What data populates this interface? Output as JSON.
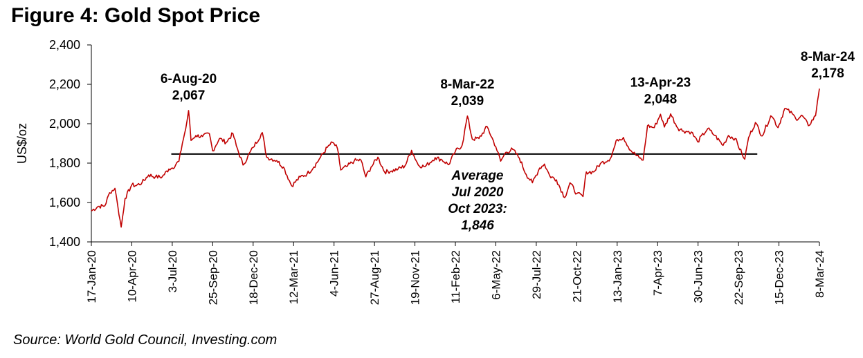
{
  "chart_data": {
    "type": "line",
    "title": "Figure 4: Gold Spot Price",
    "ylabel": "US$/oz",
    "xlabel": "",
    "ylim": [
      1400,
      2400
    ],
    "y_ticks": [
      "1,400",
      "1,600",
      "1,800",
      "2,000",
      "2,200",
      "2,400"
    ],
    "y_tick_values": [
      1400,
      1600,
      1800,
      2000,
      2200,
      2400
    ],
    "x_range": [
      "2020-01-17",
      "2024-03-08"
    ],
    "x_ticks": [
      {
        "label": "17-Jan-20",
        "date": "2020-01-17"
      },
      {
        "label": "10-Apr-20",
        "date": "2020-04-10"
      },
      {
        "label": "3-Jul-20",
        "date": "2020-07-03"
      },
      {
        "label": "25-Sep-20",
        "date": "2020-09-25"
      },
      {
        "label": "18-Dec-20",
        "date": "2020-12-18"
      },
      {
        "label": "12-Mar-21",
        "date": "2021-03-12"
      },
      {
        "label": "4-Jun-21",
        "date": "2021-06-04"
      },
      {
        "label": "27-Aug-21",
        "date": "2021-08-27"
      },
      {
        "label": "19-Nov-21",
        "date": "2021-11-19"
      },
      {
        "label": "11-Feb-22",
        "date": "2022-02-11"
      },
      {
        "label": "6-May-22",
        "date": "2022-05-06"
      },
      {
        "label": "29-Jul-22",
        "date": "2022-07-29"
      },
      {
        "label": "21-Oct-22",
        "date": "2022-10-21"
      },
      {
        "label": "13-Jan-23",
        "date": "2023-01-13"
      },
      {
        "label": "7-Apr-23",
        "date": "2023-04-07"
      },
      {
        "label": "30-Jun-23",
        "date": "2023-06-30"
      },
      {
        "label": "22-Sep-23",
        "date": "2023-09-22"
      },
      {
        "label": "15-Dec-23",
        "date": "2023-12-15"
      },
      {
        "label": "8-Mar-24",
        "date": "2024-03-08"
      }
    ],
    "series": [
      {
        "name": "Gold spot price",
        "color": "#c00000",
        "points": [
          [
            "2020-01-17",
            1557
          ],
          [
            "2020-01-31",
            1580
          ],
          [
            "2020-02-14",
            1583
          ],
          [
            "2020-02-24",
            1650
          ],
          [
            "2020-03-06",
            1672
          ],
          [
            "2020-03-12",
            1580
          ],
          [
            "2020-03-19",
            1475
          ],
          [
            "2020-03-27",
            1620
          ],
          [
            "2020-04-10",
            1690
          ],
          [
            "2020-04-17",
            1685
          ],
          [
            "2020-05-01",
            1700
          ],
          [
            "2020-05-15",
            1740
          ],
          [
            "2020-05-29",
            1730
          ],
          [
            "2020-06-12",
            1730
          ],
          [
            "2020-06-26",
            1770
          ],
          [
            "2020-07-03",
            1775
          ],
          [
            "2020-07-17",
            1810
          ],
          [
            "2020-07-24",
            1900
          ],
          [
            "2020-07-31",
            1975
          ],
          [
            "2020-08-06",
            2067
          ],
          [
            "2020-08-11",
            1915
          ],
          [
            "2020-08-21",
            1940
          ],
          [
            "2020-09-04",
            1935
          ],
          [
            "2020-09-18",
            1950
          ],
          [
            "2020-09-25",
            1862
          ],
          [
            "2020-10-09",
            1925
          ],
          [
            "2020-10-23",
            1905
          ],
          [
            "2020-11-06",
            1950
          ],
          [
            "2020-11-13",
            1889
          ],
          [
            "2020-11-27",
            1790
          ],
          [
            "2020-12-18",
            1880
          ],
          [
            "2021-01-06",
            1955
          ],
          [
            "2021-01-15",
            1830
          ],
          [
            "2021-02-05",
            1813
          ],
          [
            "2021-02-19",
            1780
          ],
          [
            "2021-03-08",
            1685
          ],
          [
            "2021-03-26",
            1730
          ],
          [
            "2021-04-09",
            1745
          ],
          [
            "2021-04-23",
            1780
          ],
          [
            "2021-05-07",
            1830
          ],
          [
            "2021-05-21",
            1880
          ],
          [
            "2021-06-01",
            1905
          ],
          [
            "2021-06-11",
            1875
          ],
          [
            "2021-06-18",
            1765
          ],
          [
            "2021-07-02",
            1785
          ],
          [
            "2021-07-16",
            1812
          ],
          [
            "2021-07-30",
            1815
          ],
          [
            "2021-08-09",
            1730
          ],
          [
            "2021-08-20",
            1780
          ],
          [
            "2021-09-03",
            1830
          ],
          [
            "2021-09-17",
            1755
          ],
          [
            "2021-10-01",
            1760
          ],
          [
            "2021-10-15",
            1770
          ],
          [
            "2021-10-29",
            1785
          ],
          [
            "2021-11-12",
            1865
          ],
          [
            "2021-11-26",
            1790
          ],
          [
            "2021-12-10",
            1782
          ],
          [
            "2021-12-31",
            1828
          ],
          [
            "2022-01-14",
            1817
          ],
          [
            "2022-01-28",
            1792
          ],
          [
            "2022-02-11",
            1860
          ],
          [
            "2022-02-25",
            1890
          ],
          [
            "2022-03-08",
            2039
          ],
          [
            "2022-03-18",
            1922
          ],
          [
            "2022-04-01",
            1925
          ],
          [
            "2022-04-18",
            1985
          ],
          [
            "2022-05-06",
            1883
          ],
          [
            "2022-05-16",
            1810
          ],
          [
            "2022-05-27",
            1855
          ],
          [
            "2022-06-10",
            1870
          ],
          [
            "2022-06-24",
            1825
          ],
          [
            "2022-07-08",
            1742
          ],
          [
            "2022-07-21",
            1700
          ],
          [
            "2022-08-05",
            1775
          ],
          [
            "2022-08-15",
            1795
          ],
          [
            "2022-08-26",
            1735
          ],
          [
            "2022-09-09",
            1715
          ],
          [
            "2022-09-26",
            1625
          ],
          [
            "2022-10-07",
            1700
          ],
          [
            "2022-10-21",
            1645
          ],
          [
            "2022-11-03",
            1630
          ],
          [
            "2022-11-10",
            1755
          ],
          [
            "2022-11-25",
            1755
          ],
          [
            "2022-12-09",
            1797
          ],
          [
            "2022-12-30",
            1824
          ],
          [
            "2023-01-13",
            1920
          ],
          [
            "2023-01-26",
            1930
          ],
          [
            "2023-02-10",
            1865
          ],
          [
            "2023-02-28",
            1826
          ],
          [
            "2023-03-08",
            1815
          ],
          [
            "2023-03-17",
            1990
          ],
          [
            "2023-03-31",
            1980
          ],
          [
            "2023-04-13",
            2048
          ],
          [
            "2023-04-21",
            1983
          ],
          [
            "2023-05-04",
            2050
          ],
          [
            "2023-05-19",
            1978
          ],
          [
            "2023-05-31",
            1963
          ],
          [
            "2023-06-16",
            1958
          ],
          [
            "2023-06-29",
            1908
          ],
          [
            "2023-07-20",
            1975
          ],
          [
            "2023-08-04",
            1940
          ],
          [
            "2023-08-21",
            1890
          ],
          [
            "2023-09-01",
            1940
          ],
          [
            "2023-09-15",
            1925
          ],
          [
            "2023-09-29",
            1848
          ],
          [
            "2023-10-05",
            1820
          ],
          [
            "2023-10-13",
            1930
          ],
          [
            "2023-10-27",
            2006
          ],
          [
            "2023-11-10",
            1938
          ],
          [
            "2023-11-28",
            2040
          ],
          [
            "2023-12-04",
            2025
          ],
          [
            "2023-12-13",
            1980
          ],
          [
            "2023-12-27",
            2077
          ],
          [
            "2024-01-12",
            2050
          ],
          [
            "2024-01-19",
            2025
          ],
          [
            "2024-02-02",
            2040
          ],
          [
            "2024-02-14",
            1990
          ],
          [
            "2024-02-29",
            2040
          ],
          [
            "2024-03-04",
            2114
          ],
          [
            "2024-03-08",
            2178
          ]
        ]
      }
    ],
    "average_line": {
      "value": 1846,
      "start": "2020-07-01",
      "end": "2023-10-31",
      "color": "#000000"
    },
    "annotations": [
      {
        "id": "ann-aug20",
        "date_label": "6-Aug-20",
        "value_label": "2,067",
        "date": "2020-08-06",
        "value": 2067
      },
      {
        "id": "ann-mar22",
        "date_label": "8-Mar-22",
        "value_label": "2,039",
        "date": "2022-03-08",
        "value": 2039
      },
      {
        "id": "ann-apr23",
        "date_label": "13-Apr-23",
        "value_label": "2,048",
        "date": "2023-04-13",
        "value": 2048
      },
      {
        "id": "ann-mar24",
        "date_label": "8-Mar-24",
        "value_label": "2,178",
        "date": "2024-03-08",
        "value": 2178
      }
    ],
    "average_annotation": [
      "Average",
      "Jul 2020",
      "Oct 2023:",
      "1,846"
    ]
  },
  "source": "Source: World Gold Council, Investing.com"
}
